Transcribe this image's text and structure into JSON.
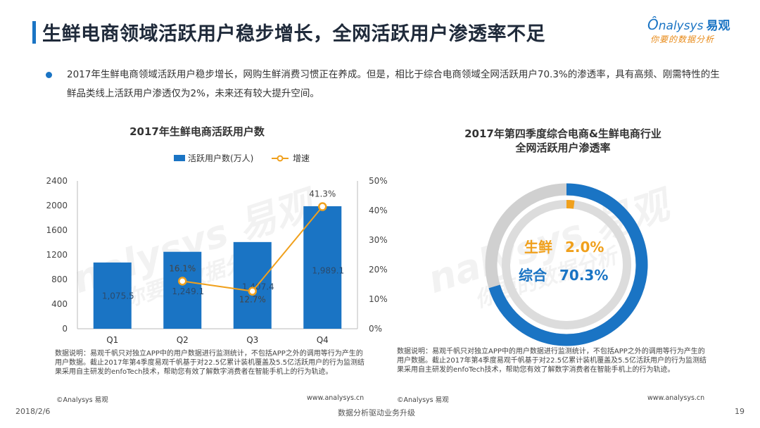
{
  "header": {
    "title": "生鲜电商领域活跃用户稳步增长，全网活跃用户渗透率不足",
    "logo_text": "nalysys",
    "logo_cn": "易观",
    "logo_tagline": "你要的数据分析"
  },
  "bullet": "2017年生鲜电商领域活跃用户稳步增长，网购生鲜消费习惯正在养成。但是，相比于综合电商领域全网活跃用户70.3%的渗透率，具有高频、刚需特性的生鲜品类线上活跃用户渗透仅为2%，未来还有较大提升空间。",
  "left_panel": {
    "title": "2017年生鲜电商活跃用户数",
    "note": "数据说明：易观千帆只对独立APP中的用户数据进行监测统计，不包括APP之外的调用等行为产生的用户数据。截止2017年第4季度易观千帆基于对22.5亿累计装机覆盖及5.5亿活跃用户的行为监测结果采用自主研发的enfoTech技术，帮助您有效了解数字消费者在智能手机上的行为轨迹。",
    "source_left": "©Analysys 易观",
    "source_right": "www.analysys.cn"
  },
  "right_panel": {
    "title_line1": "2017年第四季度综合电商&生鲜电商行业",
    "title_line2": "全网活跃用户渗透率",
    "note": "数据说明：易观千帆只对独立APP中的用户数据进行监测统计，不包括APP之外的调用等行为产生的用户数据。截止2017年第4季度易观千帆基于对22.5亿累计装机覆盖及5.5亿活跃用户的行为监测结果采用自主研发的enfoTech技术，帮助您有效了解数字消费者在智能手机上的行为轨迹。",
    "source_left": "©Analysys 易观",
    "source_right": "www.analysys.cn"
  },
  "footer": {
    "date": "2018/2/6",
    "slogan": "数据分析驱动业务升级",
    "page": "19"
  },
  "watermark": {
    "brand": "nalysys 易观",
    "tagline": "你要的数据分析"
  },
  "colors": {
    "blue": "#1a74c4",
    "orange": "#f0a01c",
    "gray_ring": "#d0d0d0",
    "text": "#333333"
  },
  "chart_data": [
    {
      "type": "bar",
      "title": "2017年生鲜电商活跃用户数",
      "categories": [
        "Q1",
        "Q2",
        "Q3",
        "Q4"
      ],
      "series": [
        {
          "name": "活跃用户数(万人)",
          "type": "bar",
          "axis": "left",
          "values": [
            1075.5,
            1249.1,
            1407.4,
            1989.1
          ],
          "labels": [
            "1,075.5",
            "1,249.1",
            "1,407.4",
            "1,989.1"
          ]
        },
        {
          "name": "增速",
          "type": "line",
          "axis": "right",
          "values": [
            null,
            16.1,
            12.7,
            41.3
          ],
          "labels": [
            "",
            "16.1%",
            "12.7%",
            "41.3%"
          ]
        }
      ],
      "y_left": {
        "min": 0,
        "max": 2400,
        "ticks": [
          "0",
          "400",
          "800",
          "1200",
          "1600",
          "2000",
          "2400"
        ]
      },
      "y_right": {
        "min": 0,
        "max": 50,
        "ticks": [
          "0%",
          "10%",
          "20%",
          "30%",
          "40%",
          "50%"
        ]
      },
      "legend": "top",
      "grid": false
    },
    {
      "type": "pie",
      "title": "2017年第四季度综合电商&生鲜电商行业全网活跃用户渗透率",
      "series": [
        {
          "name": "综合",
          "value": 70.3,
          "label": "70.3%",
          "color": "#1a74c4"
        },
        {
          "name": "生鲜",
          "value": 2.0,
          "label": "2.0%",
          "color": "#f0a01c"
        }
      ],
      "max": 100
    }
  ]
}
